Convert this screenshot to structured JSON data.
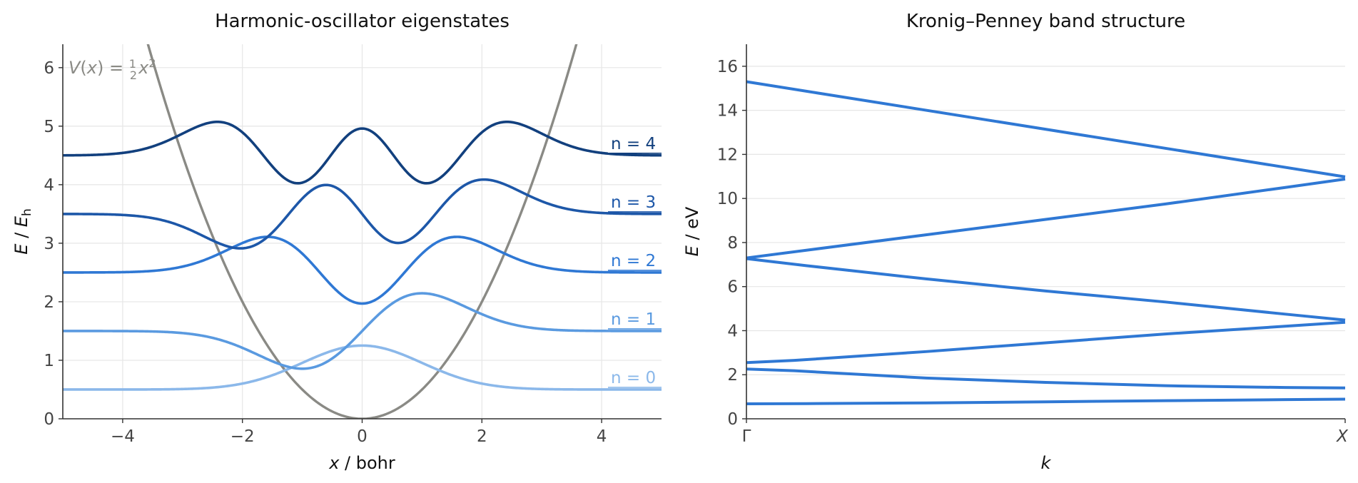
{
  "chart_data": [
    {
      "type": "line",
      "title": "Harmonic-oscillator eigenstates",
      "xlabel": "x / bohr",
      "ylabel": "E / E_h",
      "xlim": [
        -5,
        5
      ],
      "ylim": [
        0,
        6.4
      ],
      "xticks": [
        "−4",
        "−2",
        "0",
        "2",
        "4"
      ],
      "xtick_values": [
        -4,
        -2,
        0,
        2,
        4
      ],
      "yticks": [
        "0",
        "1",
        "2",
        "3",
        "4",
        "5",
        "6"
      ],
      "ytick_values": [
        0,
        1,
        2,
        3,
        4,
        5,
        6
      ],
      "grid": true,
      "potential": {
        "label": "V(x) = ½ x²",
        "coefficient": 0.5,
        "color": "#8a8a85"
      },
      "series": [
        {
          "label": "n = 0",
          "n": 0,
          "energy": 0.5,
          "color": "#8bb8ea"
        },
        {
          "label": "n = 1",
          "n": 1,
          "energy": 1.5,
          "color": "#5a9ae0"
        },
        {
          "label": "n = 2",
          "n": 2,
          "energy": 2.5,
          "color": "#2f78d4"
        },
        {
          "label": "n = 3",
          "n": 3,
          "energy": 3.5,
          "color": "#1d57a8"
        },
        {
          "label": "n = 4",
          "n": 4,
          "energy": 4.5,
          "color": "#12407e"
        }
      ]
    },
    {
      "type": "line",
      "title": "Kronig–Penney band structure",
      "xlabel": "k",
      "ylabel": "E / eV",
      "xlim": [
        0,
        1
      ],
      "ylim": [
        0,
        17
      ],
      "xticks": [
        "Γ",
        "X"
      ],
      "xtick_values": [
        0,
        1
      ],
      "yticks": [
        "0",
        "2",
        "4",
        "6",
        "8",
        "10",
        "12",
        "14",
        "16"
      ],
      "ytick_values": [
        0,
        2,
        4,
        6,
        8,
        10,
        12,
        14,
        16
      ],
      "grid": true,
      "color": "#2f78d4",
      "series": [
        {
          "x": [
            0,
            0.1,
            0.3,
            0.5,
            0.7,
            0.9,
            1
          ],
          "y": [
            0.68,
            0.69,
            0.72,
            0.77,
            0.82,
            0.87,
            0.89
          ]
        },
        {
          "x": [
            0,
            0.08,
            0.3,
            0.5,
            0.7,
            0.9,
            1
          ],
          "y": [
            2.26,
            2.18,
            1.85,
            1.65,
            1.5,
            1.42,
            1.4
          ]
        },
        {
          "x": [
            0,
            0.08,
            0.3,
            0.5,
            0.7,
            0.9,
            1
          ],
          "y": [
            2.55,
            2.65,
            3.05,
            3.45,
            3.85,
            4.2,
            4.38
          ]
        },
        {
          "x": [
            0,
            0.1,
            0.3,
            0.5,
            0.7,
            0.9,
            1
          ],
          "y": [
            7.27,
            6.95,
            6.35,
            5.8,
            5.3,
            4.75,
            4.48
          ]
        },
        {
          "x": [
            0,
            0.1,
            0.3,
            0.5,
            0.7,
            0.9,
            1
          ],
          "y": [
            7.3,
            7.65,
            8.35,
            9.05,
            9.75,
            10.5,
            10.88
          ]
        },
        {
          "x": [
            0,
            1
          ],
          "y": [
            15.3,
            10.98
          ]
        }
      ]
    }
  ]
}
